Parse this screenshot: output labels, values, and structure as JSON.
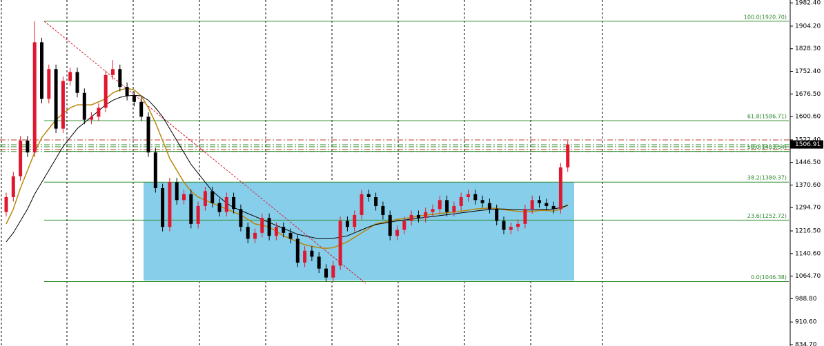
{
  "chart_data": {
    "type": "candlestick",
    "ylim": [
      830,
      1992
    ],
    "yticks": [
      {
        "value": 1982.4,
        "label": "1982.40"
      },
      {
        "value": 1904.2,
        "label": "1904.20"
      },
      {
        "value": 1828.3,
        "label": "1828.30"
      },
      {
        "value": 1752.4,
        "label": "1752.40"
      },
      {
        "value": 1676.5,
        "label": "1676.50"
      },
      {
        "value": 1600.6,
        "label": "1600.60"
      },
      {
        "value": 1522.4,
        "label": "1522.40"
      },
      {
        "value": 1446.5,
        "label": "1446.50"
      },
      {
        "value": 1370.6,
        "label": "1370.60"
      },
      {
        "value": 1294.7,
        "label": "1294.70"
      },
      {
        "value": 1216.5,
        "label": "1216.50"
      },
      {
        "value": 1140.6,
        "label": "1140.60"
      },
      {
        "value": 1064.7,
        "label": "1064.70"
      },
      {
        "value": 988.8,
        "label": "988.80"
      },
      {
        "value": 910.6,
        "label": "910.60"
      },
      {
        "value": 834.7,
        "label": "834.70"
      }
    ],
    "up_color": "#e0182f",
    "down_color": "#000000",
    "candles": [
      [
        1280,
        1345,
        1265,
        1330
      ],
      [
        1330,
        1415,
        1315,
        1400
      ],
      [
        1400,
        1535,
        1385,
        1520
      ],
      [
        1520,
        1535,
        1465,
        1480
      ],
      [
        1480,
        1921,
        1465,
        1850
      ],
      [
        1850,
        1865,
        1645,
        1660
      ],
      [
        1660,
        1775,
        1645,
        1760
      ],
      [
        1760,
        1775,
        1545,
        1560
      ],
      [
        1560,
        1735,
        1545,
        1720
      ],
      [
        1720,
        1765,
        1705,
        1750
      ],
      [
        1750,
        1765,
        1665,
        1680
      ],
      [
        1680,
        1695,
        1575,
        1590
      ],
      [
        1590,
        1615,
        1575,
        1600
      ],
      [
        1600,
        1645,
        1585,
        1630
      ],
      [
        1630,
        1755,
        1615,
        1740
      ],
      [
        1740,
        1790,
        1725,
        1760
      ],
      [
        1760,
        1775,
        1685,
        1700
      ],
      [
        1700,
        1715,
        1655,
        1670
      ],
      [
        1670,
        1685,
        1635,
        1650
      ],
      [
        1650,
        1665,
        1585,
        1600
      ],
      [
        1600,
        1615,
        1465,
        1480
      ],
      [
        1480,
        1495,
        1345,
        1360
      ],
      [
        1360,
        1375,
        1215,
        1230
      ],
      [
        1230,
        1395,
        1215,
        1380
      ],
      [
        1380,
        1395,
        1305,
        1320
      ],
      [
        1320,
        1355,
        1305,
        1340
      ],
      [
        1340,
        1355,
        1225,
        1240
      ],
      [
        1240,
        1315,
        1225,
        1300
      ],
      [
        1300,
        1365,
        1285,
        1350
      ],
      [
        1350,
        1365,
        1295,
        1310
      ],
      [
        1310,
        1325,
        1265,
        1280
      ],
      [
        1280,
        1345,
        1265,
        1330
      ],
      [
        1330,
        1345,
        1275,
        1290
      ],
      [
        1290,
        1305,
        1215,
        1230
      ],
      [
        1230,
        1245,
        1175,
        1190
      ],
      [
        1190,
        1225,
        1175,
        1210
      ],
      [
        1210,
        1275,
        1195,
        1260
      ],
      [
        1260,
        1275,
        1185,
        1200
      ],
      [
        1200,
        1245,
        1185,
        1230
      ],
      [
        1230,
        1245,
        1195,
        1210
      ],
      [
        1210,
        1225,
        1175,
        1190
      ],
      [
        1190,
        1205,
        1095,
        1110
      ],
      [
        1110,
        1165,
        1095,
        1150
      ],
      [
        1150,
        1165,
        1115,
        1130
      ],
      [
        1130,
        1145,
        1075,
        1090
      ],
      [
        1090,
        1105,
        1046,
        1060
      ],
      [
        1060,
        1115,
        1045,
        1100
      ],
      [
        1100,
        1265,
        1085,
        1250
      ],
      [
        1250,
        1265,
        1215,
        1230
      ],
      [
        1230,
        1285,
        1215,
        1270
      ],
      [
        1270,
        1355,
        1255,
        1340
      ],
      [
        1340,
        1355,
        1315,
        1330
      ],
      [
        1330,
        1345,
        1285,
        1300
      ],
      [
        1300,
        1315,
        1255,
        1270
      ],
      [
        1270,
        1285,
        1185,
        1200
      ],
      [
        1200,
        1235,
        1185,
        1220
      ],
      [
        1220,
        1265,
        1205,
        1250
      ],
      [
        1250,
        1285,
        1235,
        1270
      ],
      [
        1270,
        1285,
        1245,
        1260
      ],
      [
        1260,
        1295,
        1245,
        1280
      ],
      [
        1280,
        1305,
        1265,
        1290
      ],
      [
        1290,
        1335,
        1275,
        1320
      ],
      [
        1320,
        1335,
        1265,
        1280
      ],
      [
        1280,
        1315,
        1265,
        1300
      ],
      [
        1300,
        1345,
        1285,
        1330
      ],
      [
        1330,
        1355,
        1315,
        1340
      ],
      [
        1340,
        1355,
        1305,
        1320
      ],
      [
        1320,
        1335,
        1295,
        1310
      ],
      [
        1310,
        1325,
        1275,
        1290
      ],
      [
        1290,
        1305,
        1235,
        1250
      ],
      [
        1250,
        1265,
        1205,
        1220
      ],
      [
        1220,
        1245,
        1205,
        1230
      ],
      [
        1230,
        1255,
        1215,
        1240
      ],
      [
        1240,
        1305,
        1225,
        1290
      ],
      [
        1290,
        1335,
        1275,
        1320
      ],
      [
        1320,
        1335,
        1295,
        1310
      ],
      [
        1310,
        1325,
        1285,
        1300
      ],
      [
        1300,
        1315,
        1275,
        1290
      ],
      [
        1290,
        1445,
        1275,
        1430
      ],
      [
        1430,
        1520,
        1415,
        1506.91
      ]
    ],
    "lines": [
      {
        "color": "#b8860b",
        "values": [
          1240,
          1290,
          1360,
          1420,
          1480,
          1530,
          1560,
          1590,
          1610,
          1630,
          1640,
          1640,
          1640,
          1650,
          1660,
          1680,
          1690,
          1695,
          1690,
          1670,
          1630,
          1580,
          1520,
          1460,
          1420,
          1380,
          1350,
          1330,
          1320,
          1310,
          1300,
          1290,
          1280,
          1270,
          1255,
          1240,
          1235,
          1230,
          1215,
          1200,
          1190,
          1180,
          1170,
          1165,
          1160,
          1158,
          1160,
          1170,
          1180,
          1195,
          1210,
          1225,
          1240,
          1245,
          1250,
          1255,
          1258,
          1262,
          1266,
          1270,
          1272,
          1275,
          1278,
          1280,
          1283,
          1286,
          1290,
          1292,
          1293,
          1292,
          1288,
          1285,
          1282,
          1280,
          1282,
          1285,
          1285,
          1283,
          1290,
          1305
        ]
      },
      {
        "color": "#000000",
        "values": [
          1180,
          1210,
          1250,
          1290,
          1340,
          1380,
          1420,
          1460,
          1500,
          1530,
          1560,
          1580,
          1600,
          1620,
          1640,
          1655,
          1665,
          1670,
          1672,
          1670,
          1655,
          1630,
          1600,
          1560,
          1520,
          1480,
          1440,
          1410,
          1380,
          1350,
          1330,
          1310,
          1295,
          1285,
          1275,
          1265,
          1255,
          1245,
          1235,
          1225,
          1215,
          1205,
          1200,
          1195,
          1190,
          1190,
          1192,
          1195,
          1200,
          1210,
          1220,
          1230,
          1238,
          1242,
          1246,
          1250,
          1253,
          1256,
          1259,
          1262,
          1265,
          1268,
          1271,
          1274,
          1277,
          1280,
          1283,
          1286,
          1288,
          1290,
          1290,
          1289,
          1288,
          1287,
          1287,
          1288,
          1289,
          1290,
          1295,
          1302
        ]
      }
    ],
    "fib_color": "#2e8b2e",
    "fib_levels": [
      {
        "value": 1920.7,
        "label": "100.0(1920.70)"
      },
      {
        "value": 1586.71,
        "label": "61.8(1586.71)"
      },
      {
        "value": 1483.54,
        "label": "50.0(1483.54)"
      },
      {
        "value": 1380.37,
        "label": "38.2(1380.37)"
      },
      {
        "value": 1252.72,
        "label": "23.6(1252.72)"
      },
      {
        "value": 1046.38,
        "label": "0.0(1046.38)"
      }
    ],
    "price_lines": [
      {
        "value": 1522,
        "color": "#c0392b"
      },
      {
        "value": 1506,
        "color": "#2e8b2e"
      },
      {
        "value": 1499,
        "color": "#2e8b2e"
      },
      {
        "value": 1490,
        "color": "#c0392b"
      },
      {
        "value": 1483,
        "color": "#2e8b2e"
      }
    ],
    "box": {
      "color": "#87ceeb",
      "top": 1380.37,
      "bottom": 1050
    },
    "trendline": {
      "color": "#e0182f",
      "values": [
        1920.7,
        1040
      ]
    },
    "bid": {
      "value": 1506.91,
      "label": "1506.91"
    }
  }
}
